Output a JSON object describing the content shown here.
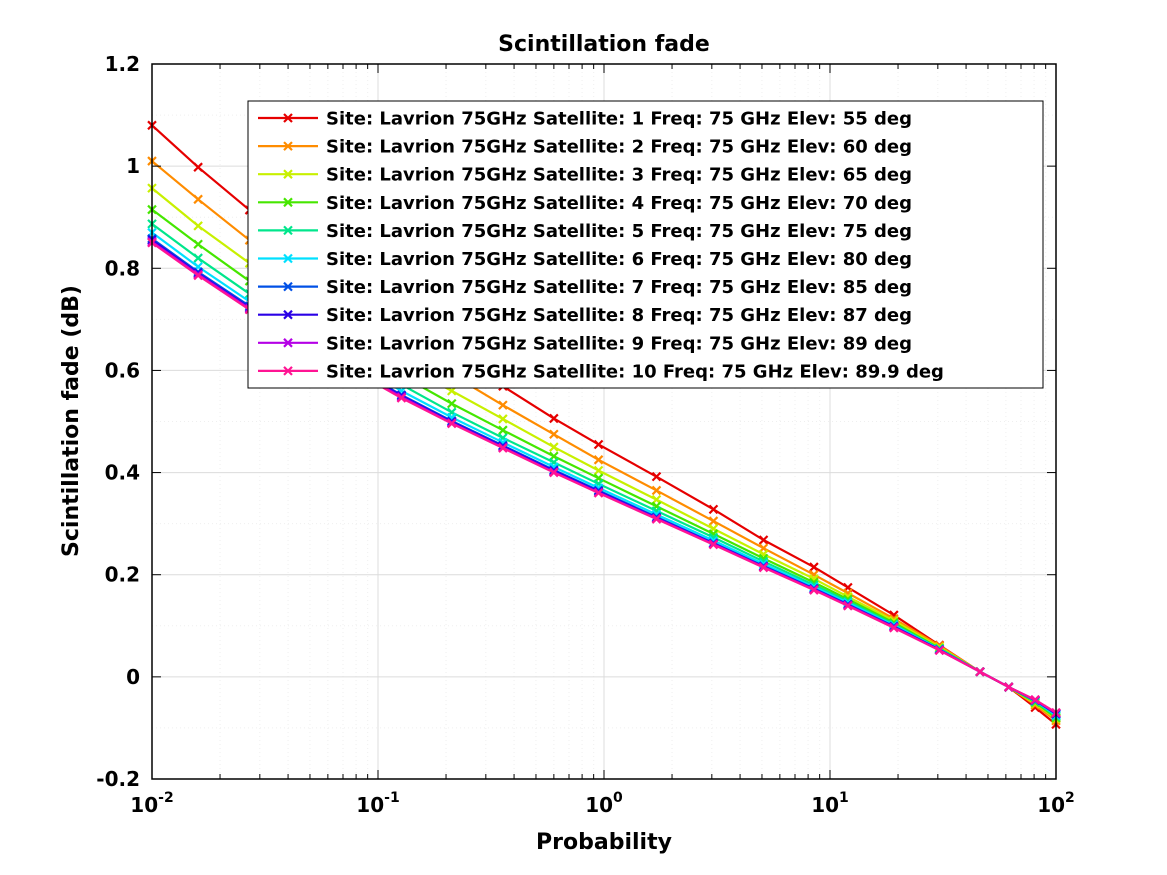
{
  "chart_data": {
    "type": "line",
    "title": "Scintillation fade",
    "xlabel": "Probability",
    "ylabel": "Scintillation fade (dB)",
    "xscale": "log",
    "xlim": [
      0.01,
      100
    ],
    "ylim": [
      -0.2,
      1.2
    ],
    "x_ticks": [
      {
        "value": 0.01,
        "base": "10",
        "exp": "-2"
      },
      {
        "value": 0.1,
        "base": "10",
        "exp": "-1"
      },
      {
        "value": 1,
        "base": "10",
        "exp": "0"
      },
      {
        "value": 10,
        "base": "10",
        "exp": "1"
      },
      {
        "value": 100,
        "base": "10",
        "exp": "2"
      }
    ],
    "y_ticks": [
      {
        "value": -0.2,
        "label": "-0.2"
      },
      {
        "value": 0,
        "label": "0"
      },
      {
        "value": 0.2,
        "label": "0.2"
      },
      {
        "value": 0.4,
        "label": "0.4"
      },
      {
        "value": 0.6,
        "label": "0.6"
      },
      {
        "value": 0.8,
        "label": "0.8"
      },
      {
        "value": 1,
        "label": "1"
      },
      {
        "value": 1.2,
        "label": "1.2"
      }
    ],
    "grid": true,
    "legend_position": "top-right",
    "marker": "x",
    "x": [
      0.01,
      0.016,
      0.027,
      0.045,
      0.075,
      0.127,
      0.212,
      0.357,
      0.6,
      0.946,
      1.707,
      3.05,
      5.08,
      8.49,
      12,
      19.17,
      30.5,
      46.11,
      61.8,
      80.88,
      100
    ],
    "series": [
      {
        "name": "Site: Lavrion 75GHz Satellite: 1 Freq: 75 GHz Elev: 55 deg",
        "color": "#e60000",
        "values": [
          1.08,
          0.998,
          0.914,
          0.835,
          0.765,
          0.693,
          0.63,
          0.569,
          0.506,
          0.455,
          0.392,
          0.328,
          0.268,
          0.215,
          0.175,
          0.121,
          0.062,
          0.01,
          -0.02,
          -0.06,
          -0.093
        ]
      },
      {
        "name": "Site: Lavrion 75GHz Satellite: 2 Freq: 75 GHz Elev: 60 deg",
        "color": "#ff8c00",
        "values": [
          1.01,
          0.935,
          0.855,
          0.785,
          0.72,
          0.65,
          0.592,
          0.532,
          0.475,
          0.425,
          0.365,
          0.305,
          0.252,
          0.2,
          0.164,
          0.114,
          0.061,
          0.01,
          -0.02,
          -0.055,
          -0.086
        ]
      },
      {
        "name": "Site: Lavrion 75GHz Satellite: 3 Freq: 75 GHz Elev: 65 deg",
        "color": "#c8f000",
        "values": [
          0.957,
          0.883,
          0.81,
          0.742,
          0.68,
          0.612,
          0.56,
          0.505,
          0.45,
          0.404,
          0.347,
          0.29,
          0.24,
          0.192,
          0.157,
          0.11,
          0.058,
          0.01,
          -0.02,
          -0.052,
          -0.082
        ]
      },
      {
        "name": "Site: Lavrion 75GHz Satellite: 4 Freq: 75 GHz Elev: 70 deg",
        "color": "#46e600",
        "values": [
          0.915,
          0.847,
          0.775,
          0.71,
          0.652,
          0.59,
          0.535,
          0.483,
          0.432,
          0.389,
          0.334,
          0.28,
          0.232,
          0.185,
          0.152,
          0.106,
          0.056,
          0.01,
          -0.02,
          -0.05,
          -0.08
        ]
      },
      {
        "name": "Site: Lavrion 75GHz Satellite: 5 Freq: 75 GHz Elev: 75 deg",
        "color": "#00e68c",
        "values": [
          0.887,
          0.82,
          0.75,
          0.688,
          0.63,
          0.572,
          0.518,
          0.468,
          0.42,
          0.378,
          0.325,
          0.273,
          0.226,
          0.18,
          0.148,
          0.103,
          0.055,
          0.01,
          -0.02,
          -0.048,
          -0.077
        ]
      },
      {
        "name": "Site: Lavrion 75GHz Satellite: 6 Freq: 75 GHz Elev: 80 deg",
        "color": "#00e0ff",
        "values": [
          0.87,
          0.803,
          0.735,
          0.674,
          0.618,
          0.56,
          0.508,
          0.459,
          0.411,
          0.37,
          0.318,
          0.267,
          0.221,
          0.176,
          0.145,
          0.101,
          0.054,
          0.01,
          -0.02,
          -0.047,
          -0.075
        ]
      },
      {
        "name": "Site: Lavrion 75GHz Satellite: 7 Freq: 75 GHz Elev: 85 deg",
        "color": "#0050e6",
        "values": [
          0.858,
          0.793,
          0.726,
          0.665,
          0.61,
          0.552,
          0.501,
          0.453,
          0.405,
          0.365,
          0.313,
          0.262,
          0.217,
          0.173,
          0.142,
          0.099,
          0.053,
          0.01,
          -0.02,
          -0.046,
          -0.073
        ]
      },
      {
        "name": "Site: Lavrion 75GHz Satellite: 8 Freq: 75 GHz Elev: 87 deg",
        "color": "#2a00e6",
        "values": [
          0.855,
          0.79,
          0.723,
          0.663,
          0.607,
          0.55,
          0.499,
          0.451,
          0.403,
          0.363,
          0.311,
          0.261,
          0.216,
          0.172,
          0.141,
          0.098,
          0.053,
          0.01,
          -0.02,
          -0.046,
          -0.072
        ]
      },
      {
        "name": "Site: Lavrion 75GHz Satellite: 9 Freq: 75 GHz Elev: 89 deg",
        "color": "#b400e6",
        "values": [
          0.852,
          0.788,
          0.721,
          0.661,
          0.605,
          0.548,
          0.497,
          0.449,
          0.401,
          0.361,
          0.31,
          0.26,
          0.215,
          0.171,
          0.14,
          0.097,
          0.052,
          0.01,
          -0.02,
          -0.045,
          -0.071
        ]
      },
      {
        "name": "Site: Lavrion 75GHz Satellite: 10 Freq: 75 GHz Elev: 89.9 deg",
        "color": "#ff1493",
        "values": [
          0.85,
          0.786,
          0.719,
          0.659,
          0.603,
          0.546,
          0.496,
          0.448,
          0.4,
          0.36,
          0.309,
          0.259,
          0.214,
          0.17,
          0.139,
          0.096,
          0.052,
          0.01,
          -0.02,
          -0.045,
          -0.07
        ]
      }
    ]
  }
}
